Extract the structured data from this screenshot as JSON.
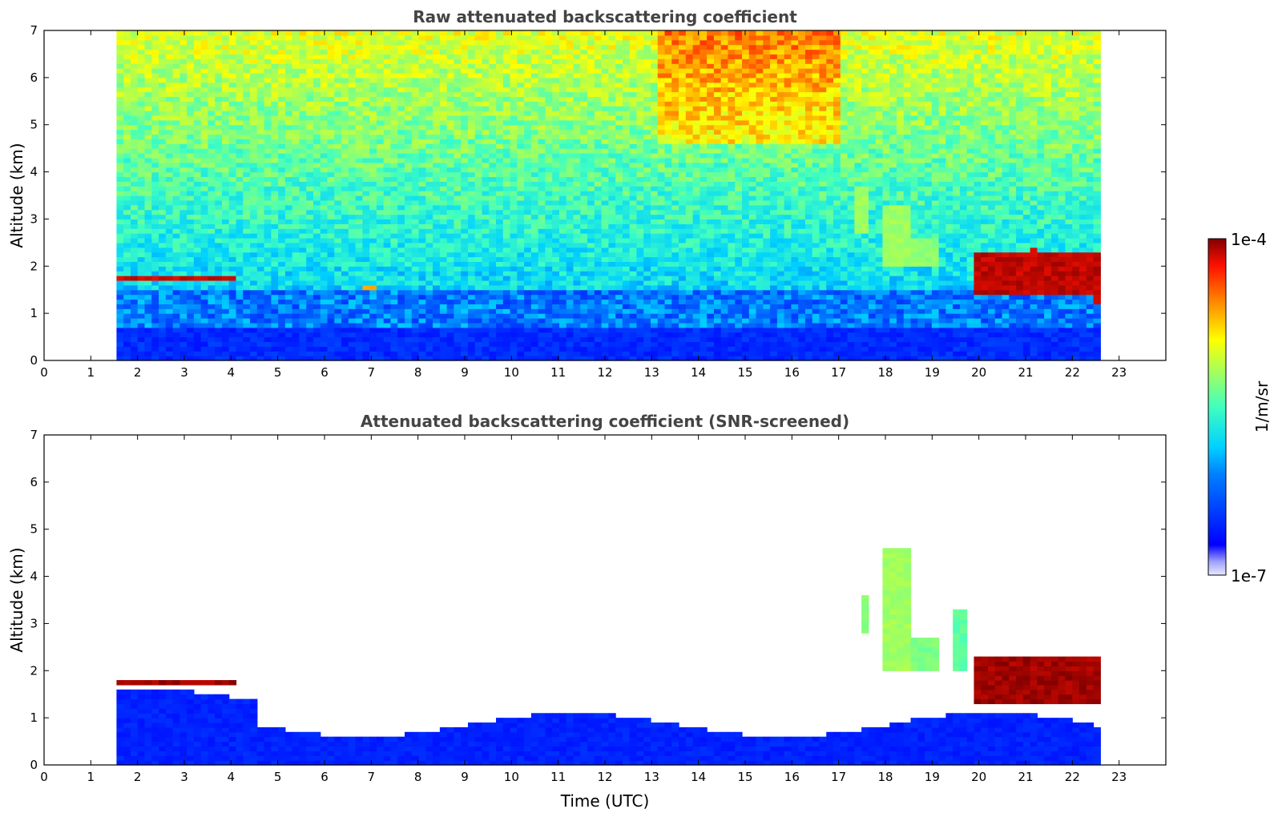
{
  "chart_data": [
    {
      "type": "heatmap",
      "title": "Raw attenuated backscattering coefficient",
      "xlabel": "",
      "ylabel": "Altitude (km)",
      "x_ticks": [
        "0",
        "1",
        "2",
        "3",
        "4",
        "5",
        "6",
        "7",
        "8",
        "9",
        "10",
        "11",
        "12",
        "13",
        "14",
        "15",
        "16",
        "17",
        "18",
        "19",
        "20",
        "21",
        "22",
        "23"
      ],
      "y_ticks": [
        "0",
        "1",
        "2",
        "3",
        "4",
        "5",
        "6",
        "7"
      ],
      "xlim": [
        0,
        24
      ],
      "ylim": [
        0,
        7
      ],
      "data_time_range": [
        1.55,
        22.6
      ],
      "colorscale": "jet",
      "features": [
        {
          "t0": 1.55,
          "t1": 4.1,
          "alt0": 1.62,
          "alt1": 1.74,
          "level": 0.97
        },
        {
          "t0": 6.7,
          "t1": 7.0,
          "alt0": 1.45,
          "alt1": 1.55,
          "level": 0.8
        },
        {
          "t0": 17.2,
          "t1": 17.6,
          "alt0": 2.7,
          "alt1": 3.6,
          "level": 0.62
        },
        {
          "t0": 17.9,
          "t1": 18.4,
          "alt0": 2.0,
          "alt1": 3.2,
          "level": 0.62
        },
        {
          "t0": 18.4,
          "t1": 19.0,
          "alt0": 2.0,
          "alt1": 2.5,
          "level": 0.6
        },
        {
          "t0": 19.8,
          "t1": 22.6,
          "alt0": 1.4,
          "alt1": 2.2,
          "level": 0.98
        },
        {
          "t0": 21.0,
          "t1": 21.2,
          "alt0": 2.2,
          "alt1": 2.4,
          "level": 0.98
        },
        {
          "t0": 22.4,
          "t1": 22.6,
          "alt0": 1.2,
          "alt1": 1.4,
          "level": 0.98
        }
      ]
    },
    {
      "type": "heatmap",
      "title": "Attenuated backscattering coefficient (SNR-screened)",
      "xlabel": "Time (UTC)",
      "ylabel": "Altitude (km)",
      "x_ticks": [
        "0",
        "1",
        "2",
        "3",
        "4",
        "5",
        "6",
        "7",
        "8",
        "9",
        "10",
        "11",
        "12",
        "13",
        "14",
        "15",
        "16",
        "17",
        "18",
        "19",
        "20",
        "21",
        "22",
        "23"
      ],
      "y_ticks": [
        "0",
        "1",
        "2",
        "3",
        "4",
        "5",
        "6",
        "7"
      ],
      "xlim": [
        0,
        24
      ],
      "ylim": [
        0,
        7
      ],
      "data_time_range": [
        1.55,
        22.6
      ],
      "colorscale": "jet",
      "features": [
        {
          "t0": 1.55,
          "t1": 4.1,
          "alt0": 1.62,
          "alt1": 1.74,
          "level": 1.0
        },
        {
          "t0": 17.4,
          "t1": 17.6,
          "alt0": 2.8,
          "alt1": 3.5,
          "level": 0.6
        },
        {
          "t0": 17.9,
          "t1": 18.4,
          "alt0": 2.0,
          "alt1": 4.5,
          "level": 0.62
        },
        {
          "t0": 18.4,
          "t1": 19.0,
          "alt0": 2.0,
          "alt1": 2.6,
          "level": 0.58
        },
        {
          "t0": 19.4,
          "t1": 19.7,
          "alt0": 2.0,
          "alt1": 3.2,
          "level": 0.55
        },
        {
          "t0": 19.8,
          "t1": 22.6,
          "alt0": 1.3,
          "alt1": 2.2,
          "level": 1.0
        }
      ]
    }
  ],
  "colorbar": {
    "max_label": "1e-4",
    "min_label": "1e-7",
    "unit_label": "1/m/sr",
    "scale": "log"
  }
}
